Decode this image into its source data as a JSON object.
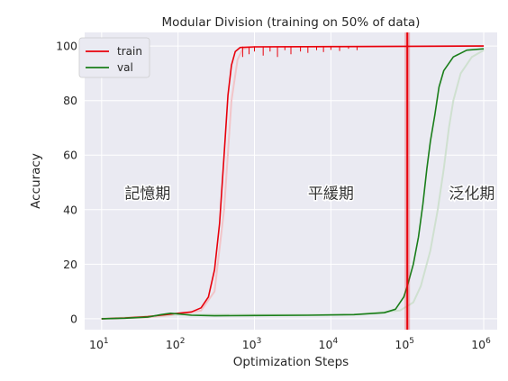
{
  "chart_data": {
    "type": "line",
    "title": "Modular Division (training on 50% of data)",
    "xlabel": "Optimization Steps",
    "ylabel": "Accuracy",
    "x_scale": "log",
    "xlim": [
      6,
      1500000
    ],
    "ylim": [
      -4,
      105
    ],
    "yticks": [
      0,
      20,
      40,
      60,
      80,
      100
    ],
    "ytick_labels": [
      "0",
      "20",
      "40",
      "60",
      "80",
      "100"
    ],
    "xticks": [
      10,
      100,
      1000,
      10000,
      100000,
      1000000
    ],
    "xtick_labels": [
      {
        "base": "10",
        "exp": "1"
      },
      {
        "base": "10",
        "exp": "2"
      },
      {
        "base": "10",
        "exp": "3"
      },
      {
        "base": "10",
        "exp": "4"
      },
      {
        "base": "10",
        "exp": "5"
      },
      {
        "base": "10",
        "exp": "6"
      }
    ],
    "grid": true,
    "legend_position": "top-left",
    "series": [
      {
        "name": "train",
        "color": "#e8000b",
        "shadow_color": "#f2c4c8",
        "points": [
          [
            10,
            0
          ],
          [
            20,
            0.3
          ],
          [
            40,
            0.8
          ],
          [
            70,
            1.5
          ],
          [
            100,
            2
          ],
          [
            150,
            2.5
          ],
          [
            200,
            4
          ],
          [
            250,
            8
          ],
          [
            300,
            18
          ],
          [
            350,
            35
          ],
          [
            400,
            60
          ],
          [
            450,
            82
          ],
          [
            500,
            93
          ],
          [
            560,
            98
          ],
          [
            650,
            99.5
          ],
          [
            1000,
            99.7
          ],
          [
            10000,
            99.8
          ],
          [
            100000,
            99.9
          ],
          [
            1000000,
            100
          ]
        ],
        "shadow_points": [
          [
            10,
            0
          ],
          [
            40,
            0.5
          ],
          [
            100,
            1.5
          ],
          [
            200,
            3
          ],
          [
            300,
            10
          ],
          [
            400,
            40
          ],
          [
            500,
            80
          ],
          [
            600,
            95
          ],
          [
            700,
            99
          ],
          [
            1000,
            99.6
          ],
          [
            1000000,
            100
          ]
        ],
        "dips": [
          [
            700,
            96
          ],
          [
            850,
            97
          ],
          [
            1000,
            98
          ],
          [
            1300,
            96.5
          ],
          [
            1600,
            98
          ],
          [
            2000,
            96
          ],
          [
            2500,
            98.5
          ],
          [
            3000,
            97
          ],
          [
            4000,
            98
          ],
          [
            5000,
            97.5
          ],
          [
            6500,
            98.5
          ],
          [
            8000,
            97.8
          ],
          [
            10000,
            98.6
          ],
          [
            13000,
            98.2
          ],
          [
            17000,
            99
          ],
          [
            22000,
            98.5
          ]
        ]
      },
      {
        "name": "val",
        "color": "#1a7e1a",
        "shadow_color": "#cfe0d0",
        "points": [
          [
            10,
            0
          ],
          [
            20,
            0.2
          ],
          [
            40,
            0.6
          ],
          [
            60,
            1.5
          ],
          [
            80,
            2
          ],
          [
            100,
            1.8
          ],
          [
            150,
            1.3
          ],
          [
            300,
            1.1
          ],
          [
            1000,
            1.2
          ],
          [
            5000,
            1.3
          ],
          [
            20000,
            1.5
          ],
          [
            50000,
            2.2
          ],
          [
            70000,
            3.5
          ],
          [
            90000,
            8
          ],
          [
            100000,
            12
          ],
          [
            120000,
            20
          ],
          [
            140000,
            30
          ],
          [
            160000,
            42
          ],
          [
            180000,
            55
          ],
          [
            200000,
            65
          ],
          [
            230000,
            75
          ],
          [
            260000,
            85
          ],
          [
            300000,
            91
          ],
          [
            400000,
            96
          ],
          [
            600000,
            98.5
          ],
          [
            1000000,
            99
          ]
        ],
        "shadow_points": [
          [
            10,
            0
          ],
          [
            100,
            1.5
          ],
          [
            20000,
            1.5
          ],
          [
            80000,
            3
          ],
          [
            120000,
            6
          ],
          [
            150000,
            12
          ],
          [
            200000,
            25
          ],
          [
            250000,
            40
          ],
          [
            300000,
            55
          ],
          [
            350000,
            70
          ],
          [
            400000,
            80
          ],
          [
            500000,
            90
          ],
          [
            700000,
            96
          ],
          [
            1000000,
            98.5
          ]
        ]
      }
    ],
    "vertical_line": {
      "x": 100000,
      "color": "#e8000b"
    },
    "annotations": [
      {
        "text": "記憶期",
        "x": 40,
        "y": 46
      },
      {
        "text": "平緩期",
        "x": 10000,
        "y": 46
      },
      {
        "text": "泛化期",
        "x": 700000,
        "y": 46
      }
    ]
  },
  "colors": {
    "plot_bg": "#eaeaf2",
    "grid": "#ffffff",
    "text": "#262626"
  }
}
